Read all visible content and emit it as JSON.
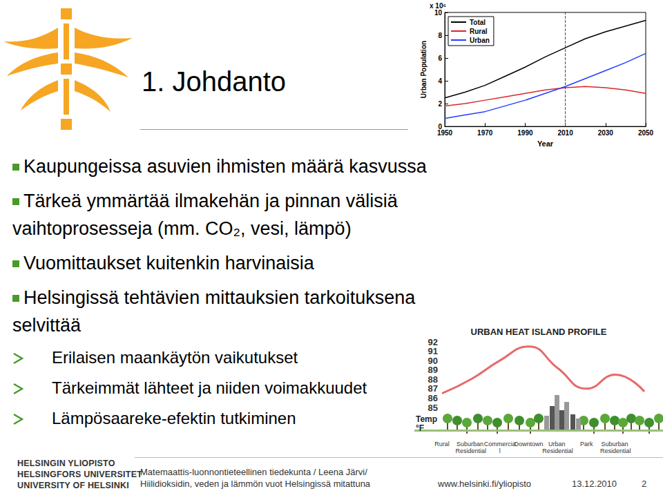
{
  "slide": {
    "title": "1. Johdanto",
    "bullets": [
      {
        "lines": [
          "Kaupungeissa asuvien ihmisten määrä kasvussa"
        ]
      },
      {
        "lines": [
          "Tärkeä ymmärtää ilmakehän ja pinnan välisiä",
          "vaihtoprosesseja (mm. CO₂, vesi, lämpö)"
        ]
      },
      {
        "lines": [
          "Vuomittaukset kuitenkin harvinaisia"
        ]
      },
      {
        "lines": [
          "Helsingissä tehtävien mittauksien tarkoituksena",
          "selvittää"
        ]
      }
    ],
    "sub_bullets": [
      "Erilaisen maankäytön vaikutukset",
      "Tärkeimmät lähteet ja niiden voimakkuudet",
      "Lämpösaareke-efektin tutkiminen"
    ],
    "logo_lines": [
      "HELSINGIN YLIOPISTO",
      "HELSINGFORS UNIVERSITET",
      "UNIVERSITY OF HELSINKI"
    ],
    "footer_lines": [
      "Matemaattis-luonnontieteellinen tiedekunta / Leena Järvi/",
      "Hiilidioksidin, veden ja lämmön vuot Helsingissä mitattuna"
    ],
    "url": "www.helsinki.fi/yliopisto",
    "date": "13.12.2010",
    "page": 2
  },
  "chart_data": [
    {
      "type": "line",
      "x": [
        1950,
        1960,
        1970,
        1980,
        1990,
        2000,
        2010,
        2020,
        2030,
        2040,
        2050
      ],
      "series": [
        {
          "name": "Total",
          "color": "#000000",
          "values": [
            2.5,
            3.0,
            3.6,
            4.4,
            5.2,
            6.1,
            6.9,
            7.7,
            8.3,
            8.8,
            9.3
          ]
        },
        {
          "name": "Rural",
          "color": "#d9262a",
          "values": [
            1.8,
            2.0,
            2.3,
            2.6,
            2.9,
            3.2,
            3.4,
            3.5,
            3.4,
            3.2,
            2.9
          ]
        },
        {
          "name": "Urban",
          "color": "#1f3fff",
          "values": [
            0.7,
            1.0,
            1.3,
            1.8,
            2.3,
            2.9,
            3.5,
            4.2,
            4.9,
            5.6,
            6.4
          ]
        }
      ],
      "xlim": [
        1950,
        2050
      ],
      "xticks": [
        1950,
        1970,
        1990,
        2010,
        2030,
        2050
      ],
      "ylim": [
        0,
        10
      ],
      "yticks": [
        0,
        2,
        4,
        6,
        8,
        10
      ],
      "x_label": "Year",
      "y_label": "Urban Population",
      "y_scale_note": "x 10⁶",
      "vline": 2010,
      "legend": "upper left",
      "grid": false
    },
    {
      "type": "line",
      "title": "URBAN HEAT ISLAND PROFILE",
      "categories": [
        "Rural",
        "Suburban Residential",
        "Commercial",
        "Downtown",
        "Urban Residential",
        "Park",
        "Suburban Residential",
        null
      ],
      "values": [
        86.5,
        88.0,
        90.0,
        91.5,
        89.2,
        87.0,
        88.5,
        86.7
      ],
      "color": "#e66a6a",
      "ylim": [
        85,
        92
      ],
      "yticks": [
        85,
        86,
        87,
        88,
        89,
        90,
        91,
        92
      ],
      "y_label": "Temp\n°F",
      "marker": "none",
      "line_style": "smooth",
      "grid": false
    }
  ]
}
